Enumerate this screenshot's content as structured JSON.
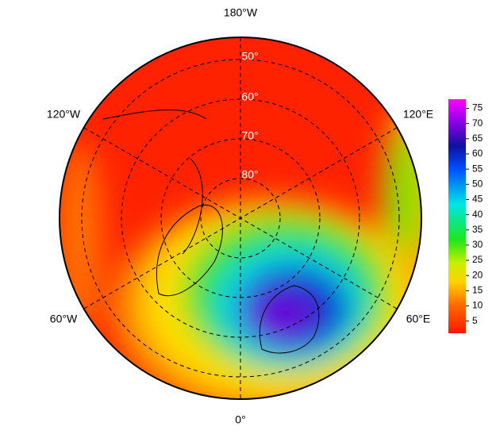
{
  "map": {
    "longitude_labels": [
      "180°W",
      "120°W",
      "120°E",
      "60°W",
      "60°E",
      "0°"
    ],
    "latitude_labels": [
      "50°",
      "60°",
      "70°",
      "80°"
    ],
    "colorbar": {
      "range": [
        1,
        78
      ],
      "ticks": [
        5,
        10,
        15,
        20,
        25,
        30,
        35,
        40,
        45,
        50,
        55,
        60,
        65,
        70,
        75
      ]
    }
  }
}
